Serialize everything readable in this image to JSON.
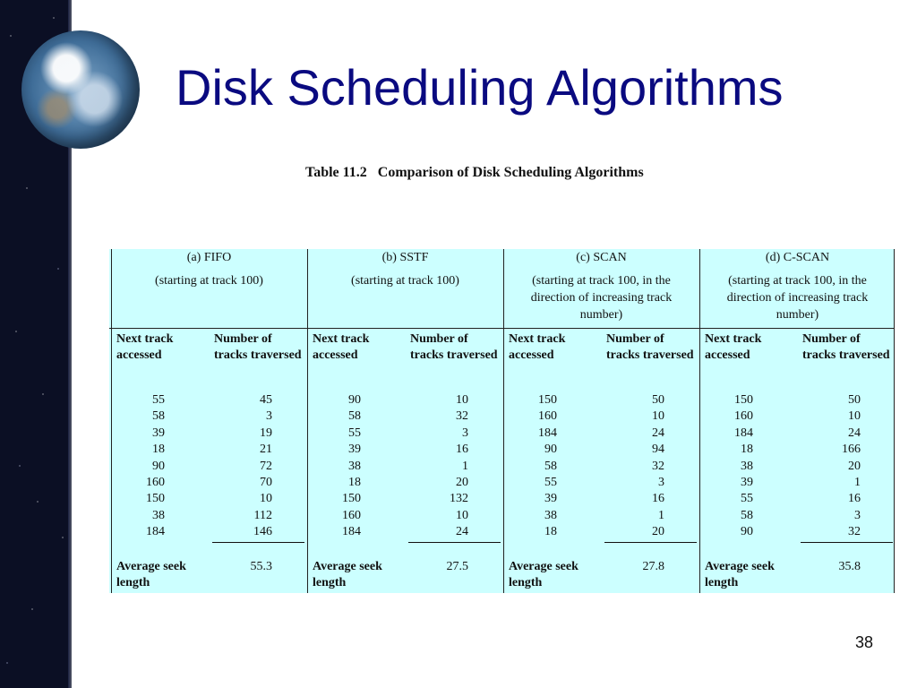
{
  "slide": {
    "title": "Disk Scheduling Algorithms",
    "page_number": "38"
  },
  "caption": {
    "table_number": "Table 11.2",
    "text": "Comparison of Disk Scheduling Algorithms"
  },
  "table": {
    "col_next": "Next track accessed",
    "col_count": "Number of tracks traversed",
    "avg_label": "Average seek length",
    "algorithms": [
      {
        "title": "(a) FIFO",
        "note": "(starting at track 100)",
        "rows": [
          [
            "55",
            "45"
          ],
          [
            "58",
            "3"
          ],
          [
            "39",
            "19"
          ],
          [
            "18",
            "21"
          ],
          [
            "90",
            "72"
          ],
          [
            "160",
            "70"
          ],
          [
            "150",
            "10"
          ],
          [
            "38",
            "112"
          ],
          [
            "184",
            "146"
          ]
        ],
        "avg": "55.3"
      },
      {
        "title": "(b) SSTF",
        "note": "(starting at track 100)",
        "rows": [
          [
            "90",
            "10"
          ],
          [
            "58",
            "32"
          ],
          [
            "55",
            "3"
          ],
          [
            "39",
            "16"
          ],
          [
            "38",
            "1"
          ],
          [
            "18",
            "20"
          ],
          [
            "150",
            "132"
          ],
          [
            "160",
            "10"
          ],
          [
            "184",
            "24"
          ]
        ],
        "avg": "27.5"
      },
      {
        "title": "(c) SCAN",
        "note": "(starting at track 100, in the direction of increasing track number)",
        "rows": [
          [
            "150",
            "50"
          ],
          [
            "160",
            "10"
          ],
          [
            "184",
            "24"
          ],
          [
            "90",
            "94"
          ],
          [
            "58",
            "32"
          ],
          [
            "55",
            "3"
          ],
          [
            "39",
            "16"
          ],
          [
            "38",
            "1"
          ],
          [
            "18",
            "20"
          ]
        ],
        "avg": "27.8"
      },
      {
        "title": "(d) C-SCAN",
        "note": "(starting at track 100, in the direction of increasing track number)",
        "rows": [
          [
            "150",
            "50"
          ],
          [
            "160",
            "10"
          ],
          [
            "184",
            "24"
          ],
          [
            "18",
            "166"
          ],
          [
            "38",
            "20"
          ],
          [
            "39",
            "1"
          ],
          [
            "55",
            "16"
          ],
          [
            "58",
            "3"
          ],
          [
            "90",
            "32"
          ]
        ],
        "avg": "35.8"
      }
    ]
  }
}
